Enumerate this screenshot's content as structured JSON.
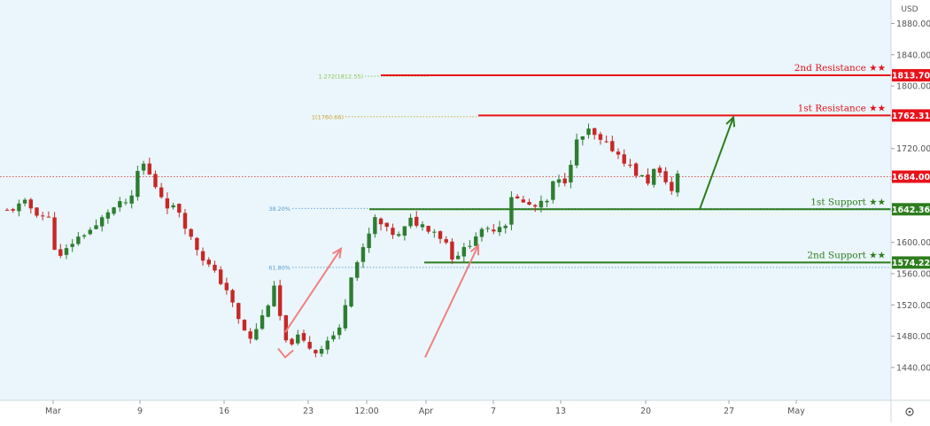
{
  "chart_data": {
    "type": "candlestick",
    "currency_label": "USD",
    "y_axis": {
      "ticks": [
        1880.0,
        1840.0,
        1800.0,
        1760.0,
        1720.0,
        1680.0,
        1640.0,
        1600.0,
        1560.0,
        1520.0,
        1480.0,
        1440.0
      ],
      "tick_labels": [
        "1880.00",
        "1840.00",
        "1800.00",
        "1760.00",
        "1720.00",
        "1680.00",
        "1640.00",
        "1600.00",
        "1560.00",
        "1520.00",
        "1480.00",
        "1440.00"
      ],
      "ylim": [
        1398,
        1910
      ]
    },
    "x_axis": {
      "tick_labels": [
        "Mar",
        "9",
        "16",
        "23",
        "12:00",
        "Apr",
        "7",
        "13",
        "20",
        "27",
        "May"
      ]
    },
    "current_price": 1684.0,
    "current_price_label": "1684.00",
    "levels": [
      {
        "name": "2nd Resistance ★★",
        "value": 1813.7,
        "label": "1813.70",
        "kind": "resistance",
        "color": "#e8121b"
      },
      {
        "name": "1st Resistance ★★",
        "value": 1762.31,
        "label": "1762.31",
        "kind": "resistance",
        "color": "#e8121b"
      },
      {
        "name": "1st Support ★★",
        "value": 1642.36,
        "label": "1642.36",
        "kind": "support",
        "color": "#2e7d1e"
      },
      {
        "name": "2nd Support ★★",
        "value": 1574.22,
        "label": "1574.22",
        "kind": "support",
        "color": "#2e7d1e"
      }
    ],
    "fibonacci": [
      {
        "label": "1.272(1812.55)",
        "value": 1812.55,
        "color": "#8bc34a"
      },
      {
        "label": "1(1760.66)",
        "value": 1760.66,
        "color": "#c9a227"
      },
      {
        "label": "38.20%",
        "value": 1643.5,
        "color": "#5b9bd5"
      },
      {
        "label": "61.80%",
        "value": 1568.0,
        "color": "#5b9bd5"
      }
    ],
    "candle_series": {
      "anchors": [
        [
          0,
          1640
        ],
        [
          3,
          1650
        ],
        [
          5,
          1638
        ],
        [
          7,
          1630
        ],
        [
          8,
          1595
        ],
        [
          9,
          1580
        ],
        [
          11,
          1600
        ],
        [
          13,
          1612
        ],
        [
          15,
          1620
        ],
        [
          17,
          1640
        ],
        [
          19,
          1648
        ],
        [
          21,
          1655
        ],
        [
          22,
          1690
        ],
        [
          23,
          1700
        ],
        [
          25,
          1672
        ],
        [
          27,
          1648
        ],
        [
          29,
          1640
        ],
        [
          31,
          1605
        ],
        [
          33,
          1580
        ],
        [
          35,
          1560
        ],
        [
          37,
          1540
        ],
        [
          39,
          1500
        ],
        [
          41,
          1475
        ],
        [
          43,
          1505
        ],
        [
          45,
          1540
        ],
        [
          47,
          1470
        ],
        [
          49,
          1478
        ],
        [
          52,
          1460
        ],
        [
          54,
          1475
        ],
        [
          56,
          1488
        ],
        [
          58,
          1560
        ],
        [
          60,
          1590
        ],
        [
          62,
          1630
        ],
        [
          64,
          1615
        ],
        [
          66,
          1608
        ],
        [
          68,
          1628
        ],
        [
          70,
          1622
        ],
        [
          72,
          1615
        ],
        [
          74,
          1600
        ],
        [
          75,
          1582
        ],
        [
          77,
          1590
        ],
        [
          79,
          1610
        ],
        [
          81,
          1615
        ],
        [
          84,
          1625
        ],
        [
          85,
          1660
        ],
        [
          87,
          1650
        ],
        [
          89,
          1645
        ],
        [
          91,
          1652
        ],
        [
          92,
          1675
        ],
        [
          94,
          1680
        ],
        [
          96,
          1728
        ],
        [
          98,
          1742
        ],
        [
          100,
          1728
        ],
        [
          102,
          1720
        ],
        [
          104,
          1705
        ],
        [
          106,
          1688
        ],
        [
          108,
          1678
        ],
        [
          109,
          1692
        ],
        [
          111,
          1680
        ],
        [
          112,
          1665
        ],
        [
          113,
          1685
        ]
      ],
      "n_candles": 114,
      "colors": {
        "up": "#2e7d32",
        "down": "#c62828"
      }
    },
    "annotations": [
      {
        "kind": "arrow",
        "color": "#f08080",
        "from": [
          86,
          1485
        ],
        "to": [
          104,
          1592
        ]
      },
      {
        "kind": "arrow",
        "color": "#f08080",
        "from": [
          251,
          1453
        ],
        "to": [
          294,
          1596
        ]
      },
      {
        "kind": "arrow",
        "color": "#2e7d1e",
        "from": [
          303,
          1642.36
        ],
        "to": [
          330,
          1760
        ]
      }
    ]
  }
}
